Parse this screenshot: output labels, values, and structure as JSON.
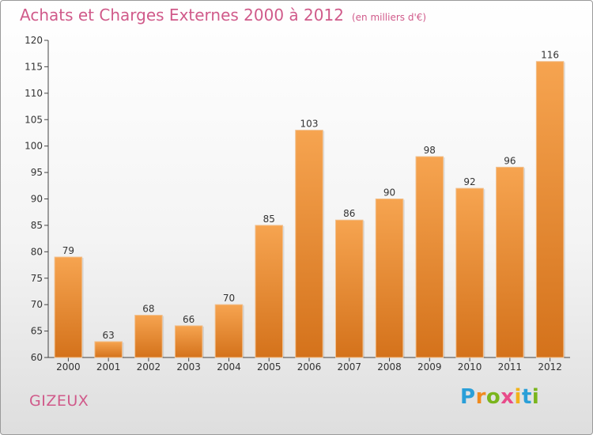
{
  "header": {
    "title": "Achats et Charges Externes 2000 à 2012",
    "unit": "(en milliers d'€)"
  },
  "footer": {
    "place": "GIZEUX",
    "logo_letters": [
      {
        "ch": "P",
        "color": "#2a9fd8"
      },
      {
        "ch": "r",
        "color": "#f08a1e"
      },
      {
        "ch": "o",
        "color": "#7ab51d"
      },
      {
        "ch": "x",
        "color": "#e84b8a"
      },
      {
        "ch": "i",
        "color": "#f2b21a"
      },
      {
        "ch": "t",
        "color": "#2a9fd8"
      },
      {
        "ch": "i",
        "color": "#7ab51d"
      }
    ]
  },
  "colors": {
    "bar_top": "#f6a450",
    "bar_bottom": "#d4721b",
    "title": "#d05a8a"
  },
  "chart_data": {
    "type": "bar",
    "title": "Achats et Charges Externes 2000 à 2012",
    "subtitle": "(en milliers d'€)",
    "categories": [
      "2000",
      "2001",
      "2002",
      "2003",
      "2004",
      "2005",
      "2006",
      "2007",
      "2008",
      "2009",
      "2010",
      "2011",
      "2012"
    ],
    "values": [
      79,
      63,
      68,
      66,
      70,
      85,
      103,
      86,
      90,
      98,
      92,
      96,
      116
    ],
    "ylim": [
      60,
      120
    ],
    "yticks": [
      60,
      65,
      70,
      75,
      80,
      85,
      90,
      95,
      100,
      105,
      110,
      115,
      120
    ],
    "grid": false,
    "data_labels": true
  }
}
